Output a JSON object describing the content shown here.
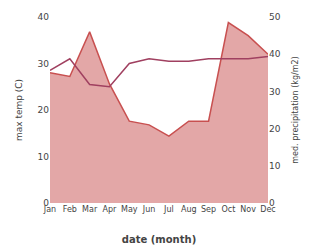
{
  "chart_data": {
    "type": "line",
    "categories": [
      "Jan",
      "Feb",
      "Mar",
      "Apr",
      "May",
      "Jun",
      "Jul",
      "Aug",
      "Sep",
      "Oct",
      "Nov",
      "Dec"
    ],
    "xlabel": "date (month)",
    "ylabel": "max temp (C)",
    "y2label": "med. precipitation (kg/m2)",
    "series": [
      {
        "type": "area",
        "axis": "y2",
        "color": "#c85050",
        "values": [
          35.0,
          34.0,
          46.0,
          32.0,
          22.0,
          21.0,
          18.0,
          22.0,
          22.0,
          48.5,
          45.0,
          40.0
        ]
      },
      {
        "type": "line",
        "color": "#a04060",
        "values": [
          28.5,
          31.0,
          25.5,
          25.0,
          30.0,
          31.0,
          30.5,
          30.5,
          31.0,
          31.0,
          31.0,
          31.5
        ]
      }
    ],
    "ylim": [
      0,
      40
    ],
    "yticks": [
      0,
      10,
      20,
      30,
      40
    ],
    "y2lim": [
      0,
      50
    ],
    "y2ticks": [
      0,
      10,
      20,
      30,
      40,
      50
    ],
    "grid": false
  }
}
